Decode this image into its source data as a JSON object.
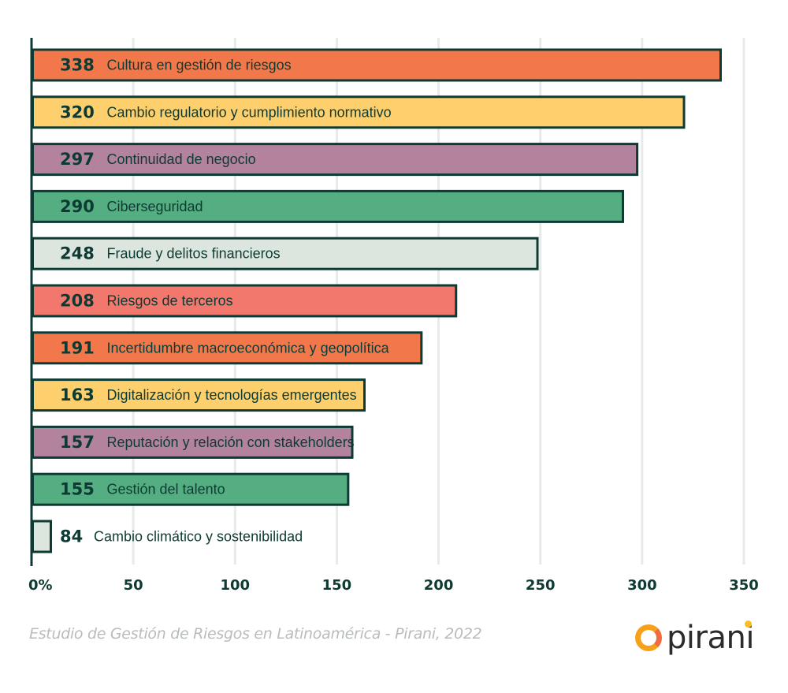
{
  "chart_data": {
    "type": "bar",
    "orientation": "horizontal",
    "title": "",
    "xlabel": "",
    "ylabel": "",
    "xlim": [
      0,
      350
    ],
    "x_ticks": [
      0,
      50,
      100,
      150,
      200,
      250,
      300,
      350
    ],
    "x_tick_labels": [
      "0%",
      "50",
      "100",
      "150",
      "200",
      "250",
      "300",
      "350"
    ],
    "grid": "vertical",
    "categories": [
      "Cultura en gestión de riesgos",
      "Cambio regulatorio y cumplimiento normativo",
      "Continuidad de negocio",
      "Ciberseguridad",
      "Fraude y delitos financieros",
      "Riesgos de terceros",
      "Incertidumbre macroeconómica y geopolítica",
      "Digitalización y tecnologías emergentes",
      "Reputación y relación con stakeholders",
      "Gestión del talento",
      "Cambio climático y sostenibilidad"
    ],
    "values": [
      338,
      320,
      297,
      290,
      248,
      208,
      191,
      163,
      157,
      155,
      84
    ],
    "value_labels": [
      "338",
      "320",
      "297",
      "290",
      "248",
      "208",
      "191",
      "163",
      "157",
      "155",
      "84"
    ],
    "colors": [
      "#f2784b",
      "#fdcf6d",
      "#b3829d",
      "#55ad82",
      "#dde6de",
      "#f2776d",
      "#f2784b",
      "#fdcf6d",
      "#b3829d",
      "#55ad82",
      "#dde6de"
    ],
    "note": "Last bar (84) is drawn truncated in the source image"
  },
  "footer": {
    "source": "Estudio de Gestión de Riesgos en Latinoamérica - Pirani, 2022",
    "logo_text": "pirani"
  },
  "style": {
    "outline_color": "#0d3b33",
    "grid_color": "#e6eae8",
    "text_color": "#0d3b33"
  }
}
